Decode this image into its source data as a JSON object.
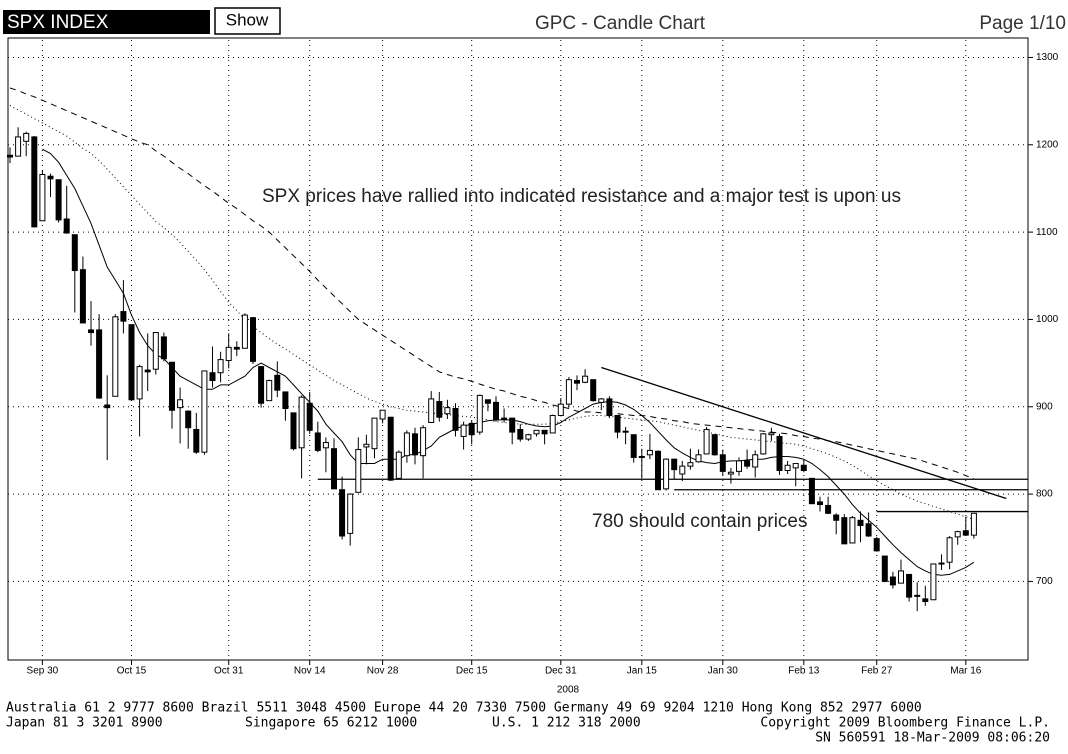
{
  "header": {
    "ticker": "SPX INDEX",
    "button": "Show",
    "title": "GPC - Candle Chart",
    "page": "Page 1/10"
  },
  "chart_data": {
    "type": "candlestick",
    "categories": [
      null,
      null,
      null,
      null,
      "Sep 30",
      null,
      null,
      null,
      null,
      null,
      null,
      null,
      null,
      null,
      null,
      "Oct 15",
      null,
      null,
      null,
      null,
      null,
      null,
      null,
      null,
      null,
      null,
      null,
      "Oct 31",
      null,
      null,
      null,
      null,
      null,
      null,
      null,
      null,
      null,
      "Nov 14",
      null,
      null,
      null,
      null,
      null,
      null,
      null,
      null,
      "Nov 28",
      null,
      null,
      null,
      null,
      null,
      null,
      null,
      null,
      null,
      null,
      "Dec 15",
      null,
      null,
      null,
      null,
      null,
      null,
      null,
      null,
      null,
      null,
      "Dec 31",
      null,
      null,
      null,
      null,
      null,
      null,
      null,
      null,
      null,
      "Jan 15",
      null,
      null,
      null,
      null,
      null,
      null,
      null,
      null,
      null,
      "Jan 30",
      null,
      null,
      null,
      null,
      null,
      null,
      null,
      null,
      null,
      "Feb 13",
      null,
      null,
      null,
      null,
      null,
      null,
      null,
      null,
      "Feb 27",
      null,
      null,
      null,
      null,
      null,
      null,
      null,
      null,
      null,
      null,
      "Mar 16",
      null
    ],
    "year_label": "2008",
    "open": [
      1188,
      1187,
      1204,
      1209,
      1113,
      1164,
      1160,
      1115,
      1097,
      1057,
      988,
      988,
      902,
      912,
      1009,
      994,
      909,
      942,
      943,
      980,
      951,
      899,
      895,
      874,
      848,
      939,
      939,
      953,
      968,
      967,
      1002,
      946,
      907,
      936,
      917,
      893,
      853,
      904,
      870,
      853,
      852,
      805,
      755,
      802,
      854,
      852,
      886,
      888,
      818,
      844,
      869,
      844,
      882,
      906,
      892,
      898,
      866,
      881,
      871,
      908,
      905,
      886,
      887,
      874,
      863,
      869,
      873,
      870,
      890,
      903,
      930,
      928,
      931,
      905,
      909,
      890,
      871,
      868,
      842,
      845,
      849,
      806,
      840,
      823,
      832,
      837,
      846,
      868,
      845,
      823,
      826,
      838,
      831,
      846,
      868,
      866,
      827,
      830,
      833,
      818,
      791,
      787,
      776,
      773,
      744,
      770,
      766,
      749,
      729,
      705,
      698,
      708,
      684,
      680,
      679,
      720,
      722,
      751,
      758,
      753
    ],
    "high": [
      1197,
      1220,
      1215,
      1210,
      1171,
      1167,
      1160,
      1153,
      1097,
      1072,
      1021,
      1006,
      936,
      1006,
      1045,
      994,
      948,
      984,
      985,
      985,
      951,
      922,
      896,
      893,
      941,
      969,
      963,
      984,
      975,
      1007,
      1003,
      946,
      931,
      952,
      917,
      893,
      913,
      917,
      883,
      865,
      864,
      820,
      801,
      865,
      868,
      887,
      896,
      888,
      850,
      873,
      876,
      879,
      918,
      917,
      908,
      904,
      883,
      884,
      914,
      908,
      912,
      898,
      887,
      880,
      869,
      873,
      873,
      891,
      910,
      934,
      936,
      943,
      931,
      910,
      912,
      890,
      877,
      868,
      852,
      869,
      850,
      841,
      840,
      838,
      852,
      851,
      877,
      868,
      851,
      830,
      842,
      851,
      850,
      870,
      876,
      869,
      838,
      835,
      839,
      818,
      797,
      797,
      778,
      777,
      775,
      780,
      779,
      751,
      729,
      711,
      725,
      708,
      699,
      695,
      720,
      731,
      752,
      758,
      774,
      778
    ],
    "low": [
      1179,
      1187,
      1187,
      1106,
      1113,
      1140,
      1111,
      1098,
      1008,
      996,
      970,
      909,
      839,
      912,
      984,
      908,
      866,
      918,
      937,
      952,
      875,
      858,
      852,
      846,
      845,
      922,
      928,
      944,
      958,
      967,
      949,
      899,
      907,
      911,
      884,
      850,
      818,
      869,
      848,
      825,
      806,
      748,
      741,
      802,
      834,
      841,
      881,
      815,
      818,
      836,
      834,
      818,
      882,
      883,
      886,
      866,
      851,
      857,
      868,
      895,
      883,
      882,
      857,
      860,
      861,
      866,
      857,
      870,
      889,
      899,
      919,
      927,
      906,
      896,
      887,
      864,
      857,
      836,
      818,
      840,
      805,
      804,
      817,
      815,
      828,
      836,
      846,
      844,
      821,
      812,
      821,
      829,
      819,
      845,
      861,
      822,
      823,
      809,
      825,
      789,
      780,
      777,
      754,
      743,
      744,
      745,
      751,
      734,
      699,
      692,
      698,
      677,
      666,
      672,
      679,
      713,
      714,
      742,
      752,
      749
    ],
    "close": [
      1186,
      1209,
      1213,
      1106,
      1166,
      1161,
      1114,
      1099,
      1056,
      996,
      985,
      910,
      899,
      1003,
      998,
      908,
      946,
      940,
      985,
      955,
      896,
      908,
      876,
      848,
      941,
      930,
      954,
      968,
      966,
      1005,
      952,
      904,
      930,
      919,
      898,
      852,
      911,
      873,
      850,
      859,
      806,
      752,
      800,
      851,
      857,
      887,
      896,
      816,
      848,
      870,
      845,
      876,
      909,
      888,
      899,
      873,
      879,
      868,
      913,
      904,
      885,
      887,
      871,
      863,
      868,
      873,
      869,
      890,
      903,
      931,
      927,
      935,
      907,
      909,
      890,
      871,
      872,
      842,
      843,
      850,
      805,
      840,
      828,
      832,
      836,
      845,
      874,
      845,
      826,
      825,
      838,
      832,
      845,
      869,
      870,
      827,
      833,
      835,
      827,
      789,
      788,
      778,
      770,
      743,
      773,
      764,
      752,
      735,
      700,
      696,
      712,
      682,
      683,
      677,
      720,
      721,
      750,
      757,
      753,
      778
    ],
    "up_color": "#ffffff",
    "down_color": "#000000",
    "moving_averages": [
      {
        "color": "#000000",
        "dash": "solid",
        "values": [
          null,
          null,
          null,
          null,
          1195,
          1190,
          1180,
          1165,
          1150,
          1130,
          1110,
          1085,
          1060,
          1045,
          1030,
          1005,
          985,
          970,
          960,
          955,
          945,
          935,
          930,
          925,
          920,
          920,
          925,
          925,
          930,
          935,
          945,
          950,
          945,
          940,
          935,
          925,
          915,
          905,
          895,
          880,
          870,
          860,
          845,
          835,
          835,
          835,
          840,
          840,
          840,
          845,
          845,
          850,
          855,
          865,
          870,
          875,
          878,
          880,
          882,
          884,
          885,
          885,
          885,
          883,
          880,
          878,
          877,
          878,
          882,
          888,
          893,
          898,
          903,
          905,
          906,
          905,
          902,
          897,
          890,
          882,
          872,
          862,
          853,
          847,
          842,
          838,
          836,
          835,
          837,
          838,
          838,
          839,
          840,
          840,
          842,
          843,
          843,
          842,
          840,
          835,
          828,
          820,
          810,
          800,
          788,
          778,
          770,
          762,
          752,
          742,
          733,
          725,
          717,
          712,
          708,
          707,
          708,
          712,
          716,
          722
        ]
      },
      {
        "color": "#000000",
        "dash": "dotted",
        "values": [
          1245,
          1240,
          1235,
          1230,
          1225,
          1220,
          1215,
          1210,
          1203,
          1196,
          1190,
          1182,
          1172,
          1162,
          1152,
          1142,
          1132,
          1122,
          1112,
          1105,
          1097,
          1088,
          1078,
          1068,
          1057,
          1045,
          1032,
          1020,
          1010,
          1000,
          992,
          985,
          978,
          972,
          966,
          960,
          954,
          948,
          942,
          936,
          930,
          925,
          920,
          915,
          910,
          906,
          903,
          900,
          898,
          896,
          895,
          894,
          893,
          892,
          891,
          890,
          889,
          888,
          887,
          885,
          883,
          882,
          881,
          880,
          880,
          880,
          880,
          881,
          883,
          885,
          887,
          889,
          890,
          890,
          889,
          888,
          887,
          886,
          885,
          884,
          883,
          881,
          879,
          877,
          875,
          873,
          871,
          869,
          867,
          865,
          864,
          863,
          862,
          861,
          860,
          859,
          858,
          857,
          855,
          852,
          849,
          846,
          842,
          838,
          833,
          827,
          821,
          815,
          810,
          805,
          800,
          796,
          792,
          789,
          786,
          783,
          780,
          777,
          774,
          771
        ]
      },
      {
        "color": "#000000",
        "dash": "dashed",
        "values": [
          1265,
          1262,
          1258,
          1255,
          1251,
          1247,
          1243,
          1239,
          1235,
          1231,
          1227,
          1223,
          1219,
          1215,
          1211,
          1207,
          1203,
          1200,
          1193,
          1187,
          1180,
          1173,
          1167,
          1160,
          1153,
          1147,
          1140,
          1133,
          1127,
          1120,
          1113,
          1107,
          1100,
          1091,
          1082,
          1073,
          1064,
          1055,
          1045,
          1036,
          1027,
          1018,
          1009,
          1000,
          994,
          988,
          982,
          976,
          970,
          964,
          958,
          952,
          946,
          940,
          937,
          934,
          932,
          929,
          926,
          923,
          920,
          918,
          915,
          912,
          910,
          907,
          905,
          902,
          900,
          898,
          895,
          894,
          894,
          893,
          892,
          892,
          891,
          890,
          890,
          889,
          887,
          886,
          884,
          883,
          881,
          880,
          879,
          878,
          877,
          876,
          875,
          874,
          873,
          872,
          871,
          870,
          869,
          867,
          866,
          864,
          863,
          861,
          860,
          858,
          856,
          854,
          852,
          850,
          848,
          846,
          844,
          842,
          840,
          837,
          834,
          831,
          828,
          825,
          821,
          818
        ]
      }
    ],
    "support_lines": [
      {
        "value": 817,
        "start": 38
      },
      {
        "value": 805,
        "start": 82
      },
      {
        "value": 780,
        "start": 107
      }
    ],
    "trendline": {
      "start": [
        73,
        945
      ],
      "end": [
        123,
        795
      ]
    },
    "annotations": [
      "SPX prices have rallied into indicated resistance and a major test is upon us",
      "780 should contain prices"
    ],
    "ylim": [
      610,
      1320
    ],
    "yticks": [
      700,
      800,
      900,
      1000,
      1100,
      1200,
      1300
    ],
    "grid": true
  },
  "footer": {
    "line1": "Australia 61 2 9777 8600 Brazil 5511 3048 4500 Europe 44 20 7330 7500 Germany 49 69 9204 1210 Hong Kong 852 2977 6000",
    "japan": "Japan 81 3 3201 8900",
    "singapore": "Singapore 65 6212 1000",
    "us": "U.S. 1 212 318 2000",
    "copyright": "Copyright 2009 Bloomberg Finance L.P.",
    "serial": "SN 560591 18-Mar-2009 08:06:20"
  }
}
